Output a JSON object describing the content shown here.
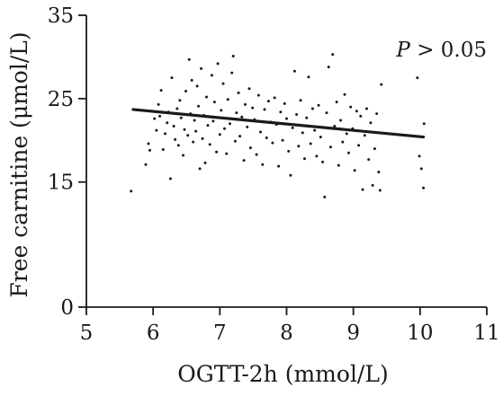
{
  "chart_data": {
    "type": "scatter",
    "title": "",
    "xlabel": "OGTT-2h (mmol/L)",
    "ylabel": "Free carnitine (μmol/L)",
    "xlim": [
      5,
      11
    ],
    "ylim": [
      0,
      35
    ],
    "xticks": [
      "5",
      "6",
      "7",
      "8",
      "9",
      "10",
      "11"
    ],
    "yticks": [
      "0",
      "15",
      "25",
      "35"
    ],
    "annotation": {
      "p_italic": "P",
      "p_rest": " > 0.05"
    },
    "grid": false,
    "legend": "none",
    "colors": {
      "points": "#1a1a1a",
      "fit": "#1a1a1a",
      "axis": "#1a1a1a"
    },
    "regression_line": {
      "x": [
        5.7,
        10.05
      ],
      "y": [
        23.7,
        20.4
      ]
    },
    "points": [
      [
        5.67,
        13.9
      ],
      [
        5.89,
        17.1
      ],
      [
        5.93,
        19.6
      ],
      [
        5.95,
        18.8
      ],
      [
        5.98,
        23.5
      ],
      [
        6.02,
        22.6
      ],
      [
        6.05,
        21.2
      ],
      [
        6.08,
        24.3
      ],
      [
        6.1,
        22.9
      ],
      [
        6.12,
        26.0
      ],
      [
        6.15,
        18.9
      ],
      [
        6.18,
        20.8
      ],
      [
        6.21,
        22.1
      ],
      [
        6.23,
        23.4
      ],
      [
        6.26,
        15.4
      ],
      [
        6.28,
        27.5
      ],
      [
        6.31,
        21.7
      ],
      [
        6.33,
        20.1
      ],
      [
        6.36,
        23.8
      ],
      [
        6.38,
        19.4
      ],
      [
        6.4,
        24.8
      ],
      [
        6.42,
        22.7
      ],
      [
        6.45,
        18.2
      ],
      [
        6.47,
        21.3
      ],
      [
        6.49,
        25.9
      ],
      [
        6.52,
        20.6
      ],
      [
        6.54,
        29.7
      ],
      [
        6.56,
        23.2
      ],
      [
        6.58,
        27.2
      ],
      [
        6.6,
        19.8
      ],
      [
        6.62,
        22.4
      ],
      [
        6.64,
        21.1
      ],
      [
        6.66,
        26.5
      ],
      [
        6.68,
        24.1
      ],
      [
        6.7,
        16.6
      ],
      [
        6.72,
        28.6
      ],
      [
        6.74,
        20.2
      ],
      [
        6.76,
        23.0
      ],
      [
        6.78,
        17.3
      ],
      [
        6.8,
        25.2
      ],
      [
        6.82,
        21.8
      ],
      [
        6.85,
        19.5
      ],
      [
        6.88,
        27.8
      ],
      [
        6.9,
        22.3
      ],
      [
        6.92,
        24.6
      ],
      [
        6.95,
        18.6
      ],
      [
        6.97,
        29.2
      ],
      [
        7.0,
        20.7
      ],
      [
        7.02,
        23.6
      ],
      [
        7.05,
        26.8
      ],
      [
        7.07,
        21.4
      ],
      [
        7.1,
        18.4
      ],
      [
        7.12,
        24.9
      ],
      [
        7.15,
        22.0
      ],
      [
        7.18,
        28.1
      ],
      [
        7.2,
        30.1
      ],
      [
        7.23,
        19.9
      ],
      [
        7.25,
        23.3
      ],
      [
        7.28,
        25.7
      ],
      [
        7.3,
        20.5
      ],
      [
        7.33,
        22.8
      ],
      [
        7.36,
        17.6
      ],
      [
        7.38,
        24.3
      ],
      [
        7.41,
        21.6
      ],
      [
        7.44,
        26.2
      ],
      [
        7.46,
        19.1
      ],
      [
        7.49,
        23.9
      ],
      [
        7.52,
        22.5
      ],
      [
        7.55,
        18.3
      ],
      [
        7.58,
        25.4
      ],
      [
        7.61,
        21.0
      ],
      [
        7.64,
        17.1
      ],
      [
        7.67,
        23.7
      ],
      [
        7.7,
        20.3
      ],
      [
        7.73,
        24.7
      ],
      [
        7.76,
        22.2
      ],
      [
        7.79,
        19.7
      ],
      [
        7.82,
        25.1
      ],
      [
        7.85,
        21.9
      ],
      [
        7.88,
        16.9
      ],
      [
        7.91,
        23.4
      ],
      [
        7.94,
        20.0
      ],
      [
        7.97,
        24.4
      ],
      [
        8.0,
        22.6
      ],
      [
        8.03,
        18.7
      ],
      [
        8.06,
        15.8
      ],
      [
        8.09,
        21.5
      ],
      [
        8.12,
        28.3
      ],
      [
        8.15,
        23.1
      ],
      [
        8.18,
        19.3
      ],
      [
        8.21,
        24.8
      ],
      [
        8.24,
        20.9
      ],
      [
        8.27,
        17.8
      ],
      [
        8.3,
        22.7
      ],
      [
        8.33,
        27.6
      ],
      [
        8.36,
        19.6
      ],
      [
        8.39,
        23.8
      ],
      [
        8.42,
        21.2
      ],
      [
        8.45,
        18.1
      ],
      [
        8.48,
        24.2
      ],
      [
        8.51,
        20.4
      ],
      [
        8.54,
        17.4
      ],
      [
        8.57,
        13.2
      ],
      [
        8.6,
        23.3
      ],
      [
        8.63,
        28.8
      ],
      [
        8.66,
        19.2
      ],
      [
        8.69,
        30.3
      ],
      [
        8.72,
        21.7
      ],
      [
        8.75,
        24.6
      ],
      [
        8.78,
        17.0
      ],
      [
        8.81,
        22.4
      ],
      [
        8.84,
        19.8
      ],
      [
        8.87,
        25.5
      ],
      [
        8.9,
        20.8
      ],
      [
        8.93,
        18.5
      ],
      [
        8.96,
        24.0
      ],
      [
        8.99,
        21.4
      ],
      [
        9.02,
        16.4
      ],
      [
        9.05,
        23.5
      ],
      [
        9.08,
        19.4
      ],
      [
        9.11,
        22.9
      ],
      [
        9.14,
        14.1
      ],
      [
        9.17,
        20.6
      ],
      [
        9.2,
        23.8
      ],
      [
        9.23,
        17.7
      ],
      [
        9.26,
        22.1
      ],
      [
        9.29,
        14.6
      ],
      [
        9.32,
        19.0
      ],
      [
        9.35,
        23.2
      ],
      [
        9.38,
        16.2
      ],
      [
        9.4,
        14.0
      ],
      [
        9.42,
        26.7
      ],
      [
        9.96,
        27.5
      ],
      [
        9.99,
        18.1
      ],
      [
        10.02,
        16.6
      ],
      [
        10.05,
        14.3
      ],
      [
        10.06,
        22.0
      ]
    ]
  }
}
